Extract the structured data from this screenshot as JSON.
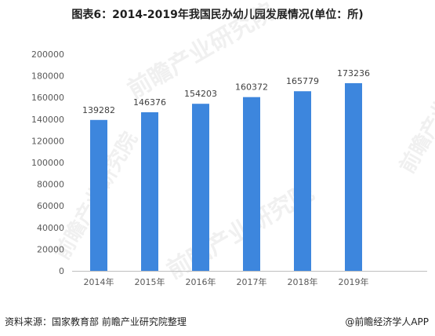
{
  "title": "图表6：2014-2019年我国民办幼儿园发展情况(单位：所)",
  "source": "资料来源：国家教育部 前瞻产业研究院整理",
  "brand": "@前瞻经济学人APP",
  "watermark": "前瞻产业研究院",
  "colors": {
    "bar": "#3d86dd",
    "grid": "#d9d9d9",
    "axis": "#bfbfbf",
    "text": "#595959"
  },
  "chart_data": {
    "type": "bar",
    "categories": [
      "2014年",
      "2015年",
      "2016年",
      "2017年",
      "2018年",
      "2019年"
    ],
    "values": [
      139282,
      146376,
      154203,
      160372,
      165779,
      173236
    ],
    "ylim": [
      0,
      200000
    ],
    "yticks": [
      0,
      20000,
      40000,
      60000,
      80000,
      100000,
      120000,
      140000,
      160000,
      180000,
      200000
    ],
    "grid": false,
    "data_labels": true
  }
}
